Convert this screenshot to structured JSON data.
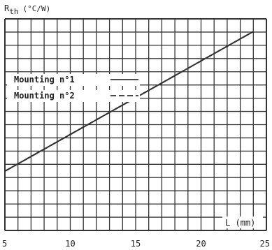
{
  "chart_data": {
    "type": "line",
    "ylabel_main": "R",
    "ylabel_sub": "th",
    "ylabel_unit": "(°C/W)",
    "xlabel": "L  (mm)",
    "xlim": [
      5,
      25
    ],
    "x_ticks": [
      5,
      10,
      15,
      20,
      25
    ],
    "x_tick_labels": [
      "5",
      "10",
      "15",
      "20",
      "25"
    ],
    "y_ticks_shown": false,
    "grid": true,
    "legend_placement": "left",
    "series": [
      {
        "name": "Mounting n°1",
        "style": "solid",
        "x": [
          5,
          24
        ],
        "y": [
          0.28,
          0.94
        ]
      },
      {
        "name": "Mounting n°2",
        "style": "dashed",
        "x": [
          5,
          24
        ],
        "y": [
          0.28,
          0.94
        ]
      }
    ],
    "legend": [
      {
        "label": "Mounting n°1",
        "style": "solid"
      },
      {
        "label": "Mounting n°2",
        "style": "dashed"
      }
    ],
    "colors": {
      "grid": "#333333",
      "line": "#333333",
      "background": "#ffffff"
    }
  }
}
